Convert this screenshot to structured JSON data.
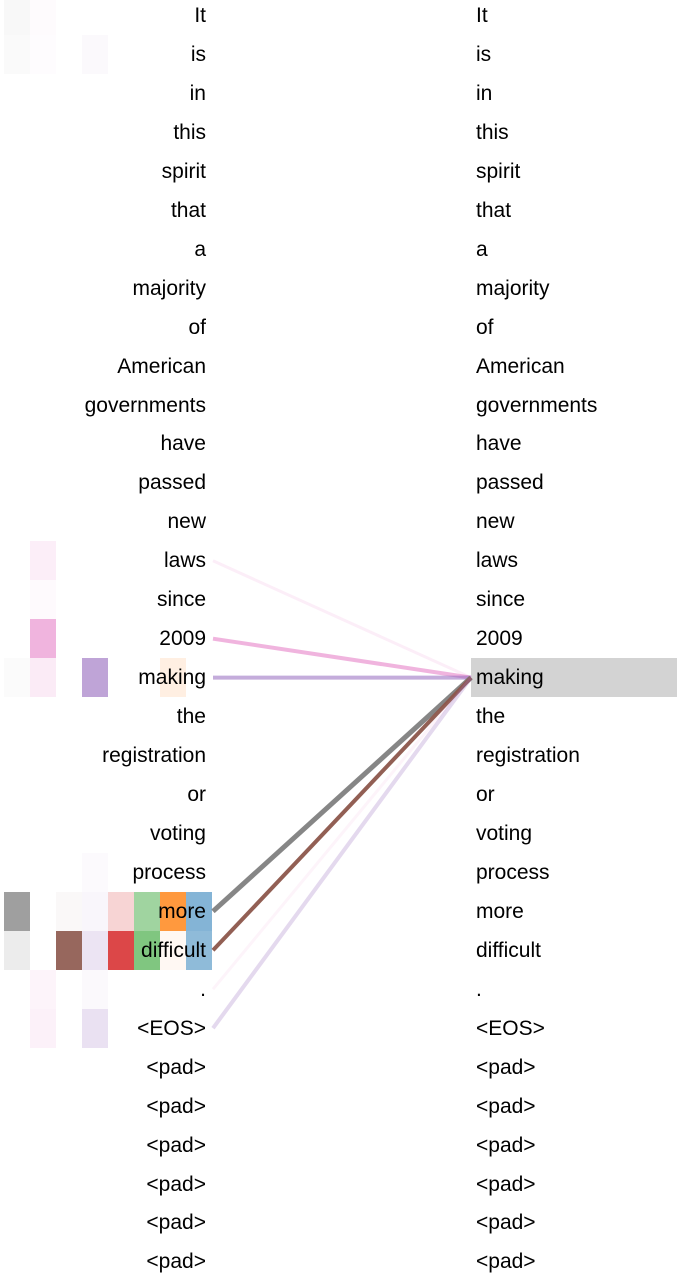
{
  "tokens": [
    "It",
    "is",
    "in",
    "this",
    "spirit",
    "that",
    "a",
    "majority",
    "of",
    "American",
    "governments",
    "have",
    "passed",
    "new",
    "laws",
    "since",
    "2009",
    "making",
    "the",
    "registration",
    "or",
    "voting",
    "process",
    "more",
    "difficult",
    ".",
    "<EOS>",
    "<pad>",
    "<pad>",
    "<pad>",
    "<pad>",
    "<pad>",
    "<pad>"
  ],
  "selected_token_index": 17,
  "attention_links": [
    {
      "from": 14,
      "color": "#e377c2",
      "opacity": 0.12,
      "width": 3
    },
    {
      "from": 16,
      "color": "#e377c2",
      "opacity": 0.55,
      "width": 4
    },
    {
      "from": 17,
      "color": "#9467bd",
      "opacity": 0.55,
      "width": 4
    },
    {
      "from": 23,
      "color": "#7f7f7f",
      "opacity": 0.95,
      "width": 5
    },
    {
      "from": 24,
      "color": "#8c564b",
      "opacity": 0.95,
      "width": 4
    },
    {
      "from": 25,
      "color": "#e377c2",
      "opacity": 0.08,
      "width": 3
    },
    {
      "from": 26,
      "color": "#9467bd",
      "opacity": 0.25,
      "width": 4
    }
  ],
  "heads": [
    {
      "color": "#7f7f7f"
    },
    {
      "color": "#e377c2"
    },
    {
      "color": "#8c564b"
    },
    {
      "color": "#9467bd"
    },
    {
      "color": "#d62728"
    },
    {
      "color": "#2ca02c"
    },
    {
      "color": "#ff7f0e"
    },
    {
      "color": "#1f77b4"
    }
  ],
  "head_cells": [
    {
      "row": 0,
      "head": 0,
      "v": 0.05
    },
    {
      "row": 0,
      "head": 1,
      "v": 0.03
    },
    {
      "row": 1,
      "head": 0,
      "v": 0.04
    },
    {
      "row": 1,
      "head": 1,
      "v": 0.02
    },
    {
      "row": 1,
      "head": 3,
      "v": 0.04
    },
    {
      "row": 14,
      "head": 1,
      "v": 0.12
    },
    {
      "row": 15,
      "head": 1,
      "v": 0.04
    },
    {
      "row": 16,
      "head": 1,
      "v": 0.55
    },
    {
      "row": 17,
      "head": 0,
      "v": 0.03
    },
    {
      "row": 17,
      "head": 1,
      "v": 0.15
    },
    {
      "row": 17,
      "head": 3,
      "v": 0.6
    },
    {
      "row": 17,
      "head": 6,
      "v": 0.12
    },
    {
      "row": 22,
      "head": 3,
      "v": 0.03
    },
    {
      "row": 23,
      "head": 0,
      "v": 0.75
    },
    {
      "row": 23,
      "head": 2,
      "v": 0.04
    },
    {
      "row": 23,
      "head": 3,
      "v": 0.06
    },
    {
      "row": 23,
      "head": 4,
      "v": 0.2
    },
    {
      "row": 23,
      "head": 5,
      "v": 0.45
    },
    {
      "row": 23,
      "head": 6,
      "v": 0.8
    },
    {
      "row": 23,
      "head": 7,
      "v": 0.55
    },
    {
      "row": 24,
      "head": 0,
      "v": 0.15
    },
    {
      "row": 24,
      "head": 2,
      "v": 0.9
    },
    {
      "row": 24,
      "head": 3,
      "v": 0.18
    },
    {
      "row": 24,
      "head": 4,
      "v": 0.85
    },
    {
      "row": 24,
      "head": 5,
      "v": 0.6
    },
    {
      "row": 24,
      "head": 6,
      "v": 0.05
    },
    {
      "row": 24,
      "head": 7,
      "v": 0.5
    },
    {
      "row": 25,
      "head": 1,
      "v": 0.08
    },
    {
      "row": 25,
      "head": 3,
      "v": 0.04
    },
    {
      "row": 26,
      "head": 1,
      "v": 0.1
    },
    {
      "row": 26,
      "head": 3,
      "v": 0.2
    }
  ]
}
